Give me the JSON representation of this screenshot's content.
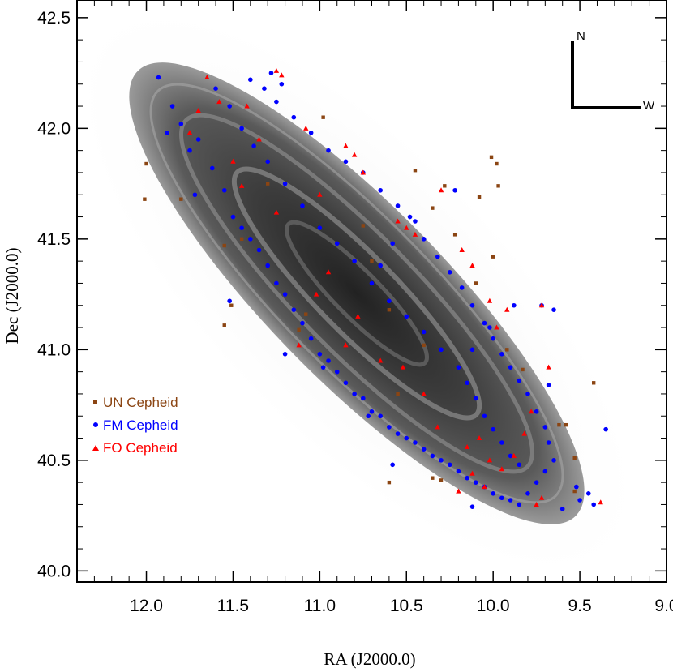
{
  "chart_data": {
    "type": "scatter",
    "title": "",
    "xlabel": "RA (J2000.0)",
    "ylabel": "Dec (J2000.0)",
    "xlim": [
      12.4,
      9.0
    ],
    "ylim": [
      39.95,
      42.58
    ],
    "x_ticks": [
      "12.0",
      "11.5",
      "11.0",
      "10.5",
      "10.0",
      "9.5",
      "9.0"
    ],
    "x_tick_values": [
      12.0,
      11.5,
      11.0,
      10.5,
      10.0,
      9.5,
      9.0
    ],
    "y_ticks": [
      "40.0",
      "40.5",
      "41.0",
      "41.5",
      "42.0",
      "42.5"
    ],
    "y_tick_values": [
      40.0,
      40.5,
      41.0,
      41.5,
      42.0,
      42.5
    ],
    "background": "Grayscale image of the M31 galaxy disk",
    "compass": {
      "north": "N",
      "west": "W"
    },
    "legend_position": "left-middle",
    "series": [
      {
        "name": "UN Cepheid",
        "marker": "square",
        "color": "#8B4513",
        "points": [
          [
            12.0,
            41.84
          ],
          [
            12.01,
            41.68
          ],
          [
            11.8,
            41.68
          ],
          [
            11.55,
            41.47
          ],
          [
            11.55,
            41.11
          ],
          [
            11.51,
            41.2
          ],
          [
            11.12,
            41.09
          ],
          [
            11.08,
            41.16
          ],
          [
            10.98,
            42.05
          ],
          [
            10.6,
            41.18
          ],
          [
            10.45,
            41.81
          ],
          [
            10.35,
            41.64
          ],
          [
            10.28,
            41.74
          ],
          [
            10.22,
            41.52
          ],
          [
            10.1,
            41.3
          ],
          [
            10.08,
            41.69
          ],
          [
            10.01,
            41.87
          ],
          [
            9.98,
            41.84
          ],
          [
            9.97,
            41.74
          ],
          [
            10.0,
            41.42
          ],
          [
            9.92,
            41.0
          ],
          [
            9.83,
            40.91
          ],
          [
            9.62,
            40.66
          ],
          [
            9.58,
            40.66
          ],
          [
            9.53,
            40.51
          ],
          [
            9.53,
            40.36
          ],
          [
            9.42,
            40.85
          ],
          [
            10.3,
            40.41
          ],
          [
            10.35,
            40.42
          ],
          [
            10.6,
            40.4
          ],
          [
            10.75,
            41.56
          ],
          [
            10.4,
            41.02
          ],
          [
            10.55,
            40.8
          ],
          [
            10.7,
            41.4
          ],
          [
            11.3,
            41.75
          ],
          [
            11.45,
            41.5
          ]
        ]
      },
      {
        "name": "FM Cepheid",
        "marker": "circle",
        "color": "#0000FF",
        "points": [
          [
            11.93,
            42.23
          ],
          [
            11.85,
            42.1
          ],
          [
            11.8,
            42.02
          ],
          [
            11.75,
            41.9
          ],
          [
            11.7,
            41.95
          ],
          [
            11.62,
            41.82
          ],
          [
            11.55,
            41.72
          ],
          [
            11.5,
            41.6
          ],
          [
            11.45,
            41.55
          ],
          [
            11.4,
            41.5
          ],
          [
            11.35,
            41.45
          ],
          [
            11.3,
            41.38
          ],
          [
            11.25,
            41.3
          ],
          [
            11.2,
            41.25
          ],
          [
            11.15,
            41.18
          ],
          [
            11.1,
            41.12
          ],
          [
            11.05,
            41.05
          ],
          [
            11.0,
            40.98
          ],
          [
            10.95,
            40.95
          ],
          [
            10.9,
            40.9
          ],
          [
            10.85,
            40.85
          ],
          [
            10.8,
            40.8
          ],
          [
            10.75,
            40.78
          ],
          [
            10.7,
            40.72
          ],
          [
            10.65,
            40.7
          ],
          [
            10.6,
            40.65
          ],
          [
            10.55,
            40.62
          ],
          [
            10.5,
            40.6
          ],
          [
            10.45,
            40.58
          ],
          [
            10.4,
            40.55
          ],
          [
            10.35,
            40.52
          ],
          [
            10.3,
            40.5
          ],
          [
            10.25,
            40.48
          ],
          [
            10.2,
            40.45
          ],
          [
            10.15,
            40.42
          ],
          [
            10.1,
            40.4
          ],
          [
            10.05,
            40.38
          ],
          [
            10.0,
            40.35
          ],
          [
            9.95,
            40.33
          ],
          [
            9.9,
            40.32
          ],
          [
            9.85,
            40.3
          ],
          [
            9.8,
            40.35
          ],
          [
            9.75,
            40.4
          ],
          [
            9.7,
            40.45
          ],
          [
            9.65,
            40.5
          ],
          [
            11.4,
            42.22
          ],
          [
            11.32,
            42.18
          ],
          [
            11.25,
            42.12
          ],
          [
            11.15,
            42.05
          ],
          [
            11.05,
            41.98
          ],
          [
            10.95,
            41.9
          ],
          [
            10.85,
            41.85
          ],
          [
            10.75,
            41.8
          ],
          [
            10.65,
            41.72
          ],
          [
            10.55,
            41.65
          ],
          [
            10.45,
            41.58
          ],
          [
            10.4,
            41.5
          ],
          [
            10.32,
            41.42
          ],
          [
            10.25,
            41.35
          ],
          [
            10.18,
            41.28
          ],
          [
            10.12,
            41.2
          ],
          [
            10.05,
            41.12
          ],
          [
            10.0,
            41.05
          ],
          [
            9.95,
            40.98
          ],
          [
            9.9,
            40.92
          ],
          [
            9.85,
            40.86
          ],
          [
            9.8,
            40.8
          ],
          [
            9.75,
            40.72
          ],
          [
            9.7,
            40.65
          ],
          [
            9.68,
            40.58
          ],
          [
            11.6,
            42.18
          ],
          [
            11.52,
            42.1
          ],
          [
            11.45,
            42.0
          ],
          [
            11.38,
            41.92
          ],
          [
            11.3,
            41.85
          ],
          [
            11.2,
            41.75
          ],
          [
            11.1,
            41.65
          ],
          [
            11.0,
            41.55
          ],
          [
            10.9,
            41.48
          ],
          [
            10.8,
            41.4
          ],
          [
            10.7,
            41.3
          ],
          [
            10.6,
            41.22
          ],
          [
            10.5,
            41.15
          ],
          [
            10.4,
            41.08
          ],
          [
            10.3,
            41.0
          ],
          [
            10.2,
            40.92
          ],
          [
            10.15,
            40.85
          ],
          [
            10.1,
            40.78
          ],
          [
            10.05,
            40.7
          ],
          [
            10.0,
            40.64
          ],
          [
            9.95,
            40.58
          ],
          [
            9.9,
            40.52
          ],
          [
            9.85,
            40.48
          ],
          [
            9.5,
            40.32
          ],
          [
            9.45,
            40.35
          ],
          [
            9.42,
            40.3
          ],
          [
            9.35,
            40.64
          ],
          [
            9.6,
            40.28
          ],
          [
            9.52,
            40.38
          ],
          [
            11.52,
            41.22
          ],
          [
            11.2,
            40.98
          ],
          [
            10.98,
            40.92
          ],
          [
            10.72,
            40.7
          ],
          [
            10.58,
            40.48
          ],
          [
            10.12,
            40.29
          ],
          [
            10.02,
            41.1
          ],
          [
            9.88,
            41.2
          ],
          [
            9.72,
            41.2
          ],
          [
            9.65,
            41.18
          ],
          [
            9.68,
            40.84
          ],
          [
            10.12,
            41.0
          ],
          [
            10.22,
            41.72
          ],
          [
            10.48,
            41.6
          ],
          [
            10.58,
            41.48
          ],
          [
            10.65,
            41.38
          ],
          [
            11.28,
            42.25
          ],
          [
            11.22,
            42.2
          ],
          [
            11.72,
            41.7
          ],
          [
            11.88,
            41.98
          ]
        ]
      },
      {
        "name": "FO Cepheid",
        "marker": "triangle",
        "color": "#FF0000",
        "points": [
          [
            11.65,
            42.23
          ],
          [
            11.58,
            42.12
          ],
          [
            11.42,
            42.1
          ],
          [
            11.25,
            42.26
          ],
          [
            11.22,
            42.24
          ],
          [
            11.08,
            42.0
          ],
          [
            10.85,
            41.92
          ],
          [
            10.8,
            41.88
          ],
          [
            10.75,
            41.8
          ],
          [
            10.55,
            41.58
          ],
          [
            10.5,
            41.55
          ],
          [
            10.45,
            41.52
          ],
          [
            10.3,
            41.72
          ],
          [
            10.18,
            41.45
          ],
          [
            10.12,
            41.38
          ],
          [
            10.02,
            41.22
          ],
          [
            9.98,
            41.1
          ],
          [
            9.92,
            41.18
          ],
          [
            9.72,
            41.2
          ],
          [
            9.68,
            40.92
          ],
          [
            9.78,
            40.72
          ],
          [
            9.82,
            40.62
          ],
          [
            9.88,
            40.52
          ],
          [
            9.95,
            40.46
          ],
          [
            10.02,
            40.5
          ],
          [
            10.08,
            40.6
          ],
          [
            10.15,
            40.56
          ],
          [
            10.12,
            40.44
          ],
          [
            10.2,
            40.36
          ],
          [
            10.05,
            40.38
          ],
          [
            9.75,
            40.3
          ],
          [
            9.72,
            40.33
          ],
          [
            9.38,
            40.31
          ],
          [
            11.12,
            41.02
          ],
          [
            11.25,
            41.62
          ],
          [
            11.45,
            41.74
          ],
          [
            11.35,
            41.95
          ],
          [
            11.0,
            41.7
          ],
          [
            10.95,
            41.35
          ],
          [
            10.78,
            41.15
          ],
          [
            10.65,
            40.95
          ],
          [
            10.4,
            40.8
          ],
          [
            10.32,
            40.65
          ],
          [
            10.52,
            40.92
          ],
          [
            10.85,
            41.02
          ],
          [
            11.02,
            41.25
          ],
          [
            11.7,
            42.08
          ],
          [
            11.75,
            41.98
          ],
          [
            11.5,
            41.85
          ]
        ]
      }
    ]
  }
}
